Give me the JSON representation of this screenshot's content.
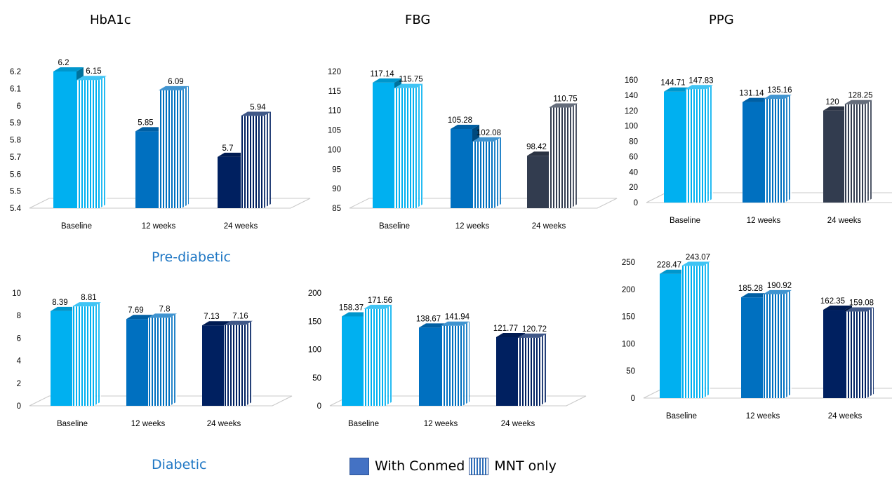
{
  "column_titles": [
    "HbA1c",
    "FBG",
    "PPG"
  ],
  "group_labels": {
    "pre_diabetic": "Pre-diabetic",
    "diabetic": "Diabetic"
  },
  "legend": {
    "with_conmed": "With Conmed",
    "mnt_only": "MNT only"
  },
  "colors": {
    "baseline": "#00b0f0",
    "week12": "#0070c0",
    "week24_pre_hba1c": "#002060",
    "week24_pre_other": "#323c4f",
    "week24_diabetic": "#002060",
    "legend_solid": "#4472c4"
  },
  "chart_data": [
    {
      "type": "bar",
      "title": "HbA1c",
      "group": "Pre-diabetic",
      "categories": [
        "Baseline",
        "12 weeks",
        "24 weeks"
      ],
      "series": [
        {
          "name": "With Conmed",
          "values": [
            6.2,
            5.85,
            5.7
          ]
        },
        {
          "name": "MNT only",
          "values": [
            6.15,
            6.09,
            5.94
          ]
        }
      ],
      "data_labels": [
        [
          "6.2",
          "5.85",
          "5.7"
        ],
        [
          "6.15",
          "6.09",
          "5.94"
        ]
      ],
      "ylim": [
        5.4,
        6.2
      ],
      "yticks": [
        "5.4",
        "5.5",
        "5.6",
        "5.7",
        "5.8",
        "5.9",
        "6",
        "6.1",
        "6.2"
      ]
    },
    {
      "type": "bar",
      "title": "FBG",
      "group": "Pre-diabetic",
      "categories": [
        "Baseline",
        "12 weeks",
        "24 weeks"
      ],
      "series": [
        {
          "name": "With Conmed",
          "values": [
            117.14,
            105.28,
            98.42
          ]
        },
        {
          "name": "MNT only",
          "values": [
            115.75,
            102.08,
            110.75
          ]
        }
      ],
      "data_labels": [
        [
          "117.14",
          "105.28",
          "98.42"
        ],
        [
          "115.75",
          "102.08",
          "110.75"
        ]
      ],
      "ylim": [
        85,
        120
      ],
      "yticks": [
        "85",
        "90",
        "95",
        "100",
        "105",
        "110",
        "115",
        "120"
      ]
    },
    {
      "type": "bar",
      "title": "PPG",
      "group": "Pre-diabetic",
      "categories": [
        "Baseline",
        "12 weeks",
        "24 weeks"
      ],
      "series": [
        {
          "name": "With Conmed",
          "values": [
            144.71,
            131.14,
            120
          ]
        },
        {
          "name": "MNT only",
          "values": [
            147.83,
            135.16,
            128.25
          ]
        }
      ],
      "data_labels": [
        [
          "144.71",
          "131.14",
          "120"
        ],
        [
          "147.83",
          "135.16",
          "128.25"
        ]
      ],
      "ylim": [
        0,
        160
      ],
      "yticks": [
        "0",
        "20",
        "40",
        "60",
        "80",
        "100",
        "120",
        "140",
        "160"
      ]
    },
    {
      "type": "bar",
      "title": "HbA1c",
      "group": "Diabetic",
      "categories": [
        "Baseline",
        "12 weeks",
        "24 weeks"
      ],
      "series": [
        {
          "name": "With Conmed",
          "values": [
            8.39,
            7.69,
            7.13
          ]
        },
        {
          "name": "MNT only",
          "values": [
            8.81,
            7.8,
            7.16
          ]
        }
      ],
      "data_labels": [
        [
          "8.39",
          "7.69",
          "7.13"
        ],
        [
          "8.81",
          "7.8",
          "7.16"
        ]
      ],
      "ylim": [
        0,
        10
      ],
      "yticks": [
        "0",
        "2",
        "4",
        "6",
        "8",
        "10"
      ]
    },
    {
      "type": "bar",
      "title": "FBG",
      "group": "Diabetic",
      "categories": [
        "Baseline",
        "12 weeks",
        "24 weeks"
      ],
      "series": [
        {
          "name": "With Conmed",
          "values": [
            158.37,
            138.67,
            121.77
          ]
        },
        {
          "name": "MNT only",
          "values": [
            171.56,
            141.94,
            120.72
          ]
        }
      ],
      "data_labels": [
        [
          "158.37",
          "138.67",
          "121.77"
        ],
        [
          "171.56",
          "141.94",
          "120.72"
        ]
      ],
      "ylim": [
        0,
        200
      ],
      "yticks": [
        "0",
        "50",
        "100",
        "150",
        "200"
      ]
    },
    {
      "type": "bar",
      "title": "PPG",
      "group": "Diabetic",
      "categories": [
        "Baseline",
        "12 weeks",
        "24 weeks"
      ],
      "series": [
        {
          "name": "With Conmed",
          "values": [
            228.47,
            185.28,
            162.35
          ]
        },
        {
          "name": "MNT only",
          "values": [
            243.07,
            190.92,
            159.08
          ]
        }
      ],
      "data_labels": [
        [
          "228.47",
          "185.28",
          "162.35"
        ],
        [
          "243.07",
          "190.92",
          "159.08"
        ]
      ],
      "ylim": [
        0,
        250
      ],
      "yticks": [
        "0",
        "50",
        "100",
        "150",
        "200",
        "250"
      ]
    }
  ]
}
